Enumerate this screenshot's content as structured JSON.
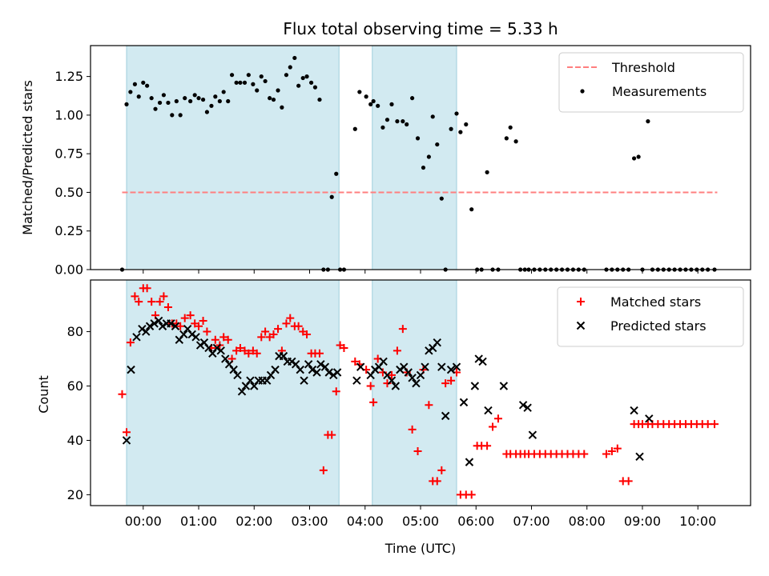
{
  "chart_data": [
    {
      "type": "scatter",
      "title": "Flux total observing time = 5.33 h",
      "xlabel": "",
      "ylabel": "Matched/Predicted stars",
      "ylim": [
        0,
        1.45
      ],
      "xlim": [
        -0.95,
        10.95
      ],
      "yticks": [
        0,
        0.25,
        0.5,
        0.75,
        1.0,
        1.25
      ],
      "ytick_labels": [
        "0.00",
        "0.25",
        "0.50",
        "0.75",
        "1.00",
        "1.25"
      ],
      "xticks": [
        0,
        1,
        2,
        3,
        4,
        5,
        6,
        7,
        8,
        9,
        10
      ],
      "grid": false,
      "legend_position": "top-right",
      "shaded_intervals": [
        [
          -0.3,
          3.53
        ],
        [
          4.13,
          5.65
        ]
      ],
      "threshold": {
        "name": "Threshold",
        "value": 0.5,
        "x_range": [
          -0.38,
          10.35
        ],
        "color": "#ff7f7f"
      },
      "series": [
        {
          "name": "Measurements",
          "color": "#000000",
          "marker": "dot",
          "x": [
            -0.38,
            -0.3,
            -0.23,
            -0.15,
            -0.08,
            0,
            0.07,
            0.15,
            0.22,
            0.3,
            0.37,
            0.45,
            0.52,
            0.6,
            0.67,
            0.75,
            0.85,
            0.93,
            1.0,
            1.08,
            1.15,
            1.23,
            1.3,
            1.38,
            1.45,
            1.53,
            1.6,
            1.68,
            1.75,
            1.83,
            1.9,
            1.98,
            2.05,
            2.13,
            2.2,
            2.28,
            2.35,
            2.43,
            2.5,
            2.58,
            2.65,
            2.73,
            2.8,
            2.88,
            2.95,
            3.03,
            3.1,
            3.18,
            3.25,
            3.33,
            3.4,
            3.48,
            3.55,
            3.62,
            3.82,
            3.9,
            4.02,
            4.1,
            4.15,
            4.23,
            4.32,
            4.4,
            4.48,
            4.58,
            4.68,
            4.75,
            4.85,
            4.95,
            5.05,
            5.15,
            5.22,
            5.3,
            5.38,
            5.45,
            5.55,
            5.65,
            5.72,
            5.82,
            5.92,
            6.02,
            6.1,
            6.2,
            6.3,
            6.4,
            6.55,
            6.62,
            6.72,
            6.8,
            6.88,
            6.95,
            7.05,
            7.15,
            7.25,
            7.35,
            7.45,
            7.55,
            7.65,
            7.75,
            7.85,
            7.95,
            8.35,
            8.45,
            8.55,
            8.65,
            8.75,
            8.85,
            8.93,
            9.0,
            9.1,
            9.18,
            9.28,
            9.38,
            9.48,
            9.58,
            9.68,
            9.78,
            9.88,
            9.98,
            10.08,
            10.18,
            10.3
          ],
          "y": [
            0,
            1.07,
            1.15,
            1.2,
            1.12,
            1.21,
            1.19,
            1.11,
            1.04,
            1.08,
            1.13,
            1.08,
            1.0,
            1.09,
            1.0,
            1.11,
            1.09,
            1.13,
            1.11,
            1.1,
            1.02,
            1.06,
            1.12,
            1.09,
            1.15,
            1.09,
            1.26,
            1.21,
            1.21,
            1.21,
            1.26,
            1.2,
            1.16,
            1.25,
            1.22,
            1.11,
            1.1,
            1.16,
            1.05,
            1.26,
            1.31,
            1.37,
            1.19,
            1.24,
            1.25,
            1.21,
            1.18,
            1.1,
            0,
            0,
            0.47,
            0.62,
            0,
            0,
            0.91,
            1.15,
            1.12,
            1.07,
            1.09,
            1.06,
            0.92,
            0.97,
            1.07,
            0.96,
            0.96,
            0.94,
            1.11,
            0.85,
            0.66,
            0.73,
            0.99,
            0.81,
            0.46,
            0,
            0.91,
            1.01,
            0.89,
            0.94,
            0.39,
            0,
            0,
            0.63,
            0,
            0,
            0.85,
            0.92,
            0.83,
            0,
            0,
            0,
            0,
            0,
            0,
            0,
            0,
            0,
            0,
            0,
            0,
            0,
            0,
            0,
            0,
            0,
            0,
            0.72,
            0.73,
            0,
            0.96,
            0,
            0,
            0,
            0,
            0,
            0,
            0,
            0,
            0,
            0,
            0,
            0
          ]
        }
      ]
    },
    {
      "type": "scatter",
      "title": "",
      "xlabel": "Time (UTC)",
      "ylabel": "Count",
      "ylim": [
        16,
        99
      ],
      "xlim": [
        -0.95,
        10.95
      ],
      "yticks": [
        20,
        40,
        60,
        80
      ],
      "ytick_labels": [
        "20",
        "40",
        "60",
        "80"
      ],
      "xticks": [
        0,
        1,
        2,
        3,
        4,
        5,
        6,
        7,
        8,
        9,
        10
      ],
      "xtick_labels": [
        "00:00",
        "01:00",
        "02:00",
        "03:00",
        "04:00",
        "05:00",
        "06:00",
        "07:00",
        "08:00",
        "09:00",
        "10:00"
      ],
      "grid": false,
      "legend_position": "top-right",
      "shaded_intervals": [
        [
          -0.3,
          3.53
        ],
        [
          4.13,
          5.65
        ]
      ],
      "series": [
        {
          "name": "Matched stars",
          "color": "#ff0000",
          "marker": "plus",
          "x": [
            -0.38,
            -0.3,
            -0.23,
            -0.15,
            -0.08,
            0,
            0.07,
            0.15,
            0.22,
            0.3,
            0.37,
            0.45,
            0.52,
            0.6,
            0.67,
            0.75,
            0.85,
            0.93,
            1.0,
            1.08,
            1.15,
            1.23,
            1.3,
            1.38,
            1.45,
            1.53,
            1.6,
            1.68,
            1.75,
            1.83,
            1.9,
            1.98,
            2.05,
            2.13,
            2.2,
            2.28,
            2.35,
            2.43,
            2.5,
            2.58,
            2.65,
            2.73,
            2.8,
            2.88,
            2.95,
            3.03,
            3.1,
            3.18,
            3.25,
            3.33,
            3.4,
            3.48,
            3.55,
            3.62,
            3.82,
            3.9,
            4.02,
            4.1,
            4.15,
            4.23,
            4.32,
            4.4,
            4.48,
            4.58,
            4.68,
            4.75,
            4.85,
            4.95,
            5.05,
            5.15,
            5.22,
            5.3,
            5.38,
            5.45,
            5.55,
            5.65,
            5.72,
            5.82,
            5.92,
            6.02,
            6.1,
            6.2,
            6.3,
            6.4,
            6.55,
            6.62,
            6.72,
            6.8,
            6.88,
            6.95,
            7.05,
            7.15,
            7.25,
            7.35,
            7.45,
            7.55,
            7.65,
            7.75,
            7.85,
            7.95,
            8.35,
            8.45,
            8.55,
            8.65,
            8.75,
            8.85,
            8.93,
            9.0,
            9.1,
            9.18,
            9.28,
            9.38,
            9.48,
            9.58,
            9.68,
            9.78,
            9.88,
            9.98,
            10.08,
            10.18,
            10.3
          ],
          "y": [
            57,
            43,
            76,
            93,
            91,
            96,
            96,
            91,
            86,
            91,
            93,
            89,
            83,
            83,
            82,
            85,
            86,
            83,
            82,
            84,
            80,
            74,
            77,
            75,
            78,
            77,
            70,
            73,
            74,
            73,
            72,
            73,
            72,
            78,
            80,
            78,
            79,
            81,
            73,
            83,
            85,
            82,
            82,
            80,
            79,
            72,
            72,
            72,
            29,
            42,
            42,
            58,
            75,
            74,
            69,
            68,
            66,
            60,
            54,
            70,
            65,
            61,
            64,
            73,
            81,
            65,
            44,
            36,
            66,
            53,
            25,
            25,
            29,
            61,
            62,
            65,
            20,
            20,
            20,
            38,
            38,
            38,
            45,
            48,
            35,
            35,
            35,
            35,
            35,
            35,
            35,
            35,
            35,
            35,
            35,
            35,
            35,
            35,
            35,
            35,
            35,
            36,
            37,
            25,
            25,
            46,
            46,
            46,
            46,
            46,
            46,
            46,
            46,
            46,
            46,
            46,
            46,
            46,
            46,
            46,
            46
          ]
        },
        {
          "name": "Predicted stars",
          "color": "#000000",
          "marker": "x",
          "x": [
            -0.3,
            -0.22,
            -0.12,
            -0.02,
            0.05,
            0.12,
            0.2,
            0.28,
            0.35,
            0.42,
            0.5,
            0.58,
            0.65,
            0.73,
            0.8,
            0.88,
            0.95,
            1.03,
            1.1,
            1.18,
            1.25,
            1.33,
            1.4,
            1.48,
            1.55,
            1.63,
            1.7,
            1.78,
            1.85,
            1.93,
            2.0,
            2.08,
            2.15,
            2.23,
            2.3,
            2.38,
            2.45,
            2.53,
            2.6,
            2.68,
            2.75,
            2.83,
            2.9,
            2.98,
            3.05,
            3.13,
            3.2,
            3.28,
            3.35,
            3.43,
            3.5,
            3.85,
            3.92,
            4.1,
            4.18,
            4.25,
            4.33,
            4.4,
            4.48,
            4.55,
            4.63,
            4.7,
            4.78,
            4.85,
            4.92,
            5.0,
            5.08,
            5.15,
            5.22,
            5.3,
            5.38,
            5.45,
            5.55,
            5.65,
            5.78,
            5.88,
            5.98,
            6.05,
            6.12,
            6.22,
            6.5,
            6.85,
            6.93,
            7.02,
            8.85,
            8.95,
            9.12
          ],
          "y": [
            40,
            66,
            78,
            81,
            80,
            82,
            83,
            84,
            82,
            83,
            83,
            82,
            77,
            79,
            81,
            79,
            78,
            75,
            76,
            74,
            72,
            74,
            73,
            70,
            68,
            66,
            64,
            58,
            60,
            62,
            60,
            62,
            62,
            62,
            64,
            66,
            71,
            71,
            69,
            69,
            68,
            66,
            62,
            68,
            66,
            65,
            68,
            67,
            65,
            64,
            65,
            62,
            67,
            64,
            66,
            67,
            69,
            64,
            62,
            60,
            66,
            67,
            65,
            63,
            61,
            64,
            67,
            73,
            74,
            76,
            67,
            49,
            66,
            67,
            54,
            32,
            60,
            70,
            69,
            51,
            60,
            53,
            52,
            42,
            51,
            34,
            48
          ]
        }
      ]
    }
  ]
}
